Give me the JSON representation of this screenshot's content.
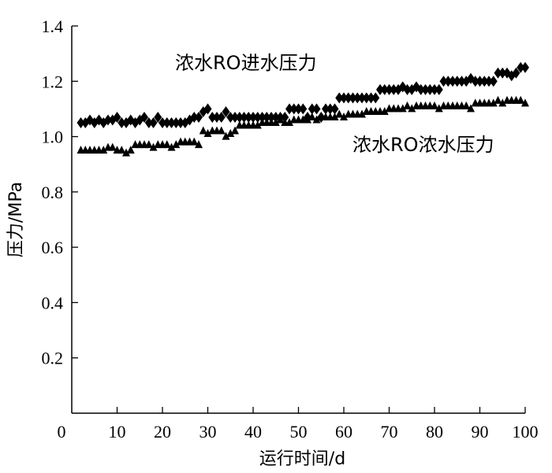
{
  "chart_data": {
    "type": "scatter",
    "title": "",
    "xlabel": "运行时间/d",
    "ylabel": "压力/MPa",
    "xlim": [
      0,
      100
    ],
    "ylim": [
      0,
      1.4
    ],
    "x_ticks": [
      0,
      10,
      20,
      30,
      40,
      50,
      60,
      70,
      80,
      90,
      100
    ],
    "y_ticks": [
      0.2,
      0.4,
      0.6,
      0.8,
      1.0,
      1.2,
      1.4
    ],
    "x_tick_labels": [
      "0",
      "10",
      "20",
      "30",
      "40",
      "50",
      "60",
      "70",
      "80",
      "90",
      "100"
    ],
    "y_tick_labels": [
      "0.2",
      "0.4",
      "0.6",
      "0.8",
      "1.0",
      "1.2",
      "1.4"
    ],
    "grid": false,
    "series": [
      {
        "name": "浓水RO进水压力",
        "marker": "diamond",
        "color": "#000000",
        "x": [
          2,
          3,
          4,
          5,
          6,
          7,
          8,
          9,
          10,
          11,
          12,
          13,
          14,
          15,
          16,
          17,
          18,
          19,
          20,
          21,
          22,
          23,
          24,
          25,
          26,
          27,
          28,
          29,
          30,
          31,
          32,
          33,
          34,
          35,
          36,
          37,
          38,
          39,
          40,
          41,
          42,
          43,
          44,
          45,
          46,
          47,
          48,
          49,
          50,
          51,
          52,
          53,
          54,
          55,
          56,
          57,
          58,
          59,
          60,
          61,
          62,
          63,
          64,
          65,
          66,
          67,
          68,
          69,
          70,
          71,
          72,
          73,
          74,
          75,
          76,
          77,
          78,
          79,
          80,
          81,
          82,
          83,
          84,
          85,
          86,
          87,
          88,
          89,
          90,
          91,
          92,
          93,
          94,
          95,
          96,
          97,
          98,
          99,
          100
        ],
        "y": [
          1.05,
          1.05,
          1.06,
          1.05,
          1.06,
          1.05,
          1.06,
          1.06,
          1.07,
          1.05,
          1.05,
          1.06,
          1.05,
          1.06,
          1.07,
          1.05,
          1.05,
          1.07,
          1.05,
          1.05,
          1.05,
          1.05,
          1.05,
          1.05,
          1.06,
          1.07,
          1.07,
          1.09,
          1.1,
          1.07,
          1.07,
          1.07,
          1.09,
          1.07,
          1.07,
          1.07,
          1.07,
          1.07,
          1.07,
          1.07,
          1.07,
          1.07,
          1.07,
          1.07,
          1.07,
          1.07,
          1.1,
          1.1,
          1.1,
          1.1,
          1.07,
          1.1,
          1.1,
          1.07,
          1.1,
          1.1,
          1.1,
          1.14,
          1.14,
          1.14,
          1.14,
          1.14,
          1.14,
          1.14,
          1.14,
          1.14,
          1.17,
          1.17,
          1.17,
          1.17,
          1.17,
          1.18,
          1.17,
          1.17,
          1.18,
          1.17,
          1.17,
          1.17,
          1.17,
          1.17,
          1.2,
          1.2,
          1.2,
          1.2,
          1.2,
          1.2,
          1.21,
          1.2,
          1.2,
          1.2,
          1.2,
          1.2,
          1.23,
          1.23,
          1.23,
          1.22,
          1.23,
          1.25,
          1.25
        ]
      },
      {
        "name": "浓水RO浓水压力",
        "marker": "triangle",
        "color": "#000000",
        "x": [
          2,
          3,
          4,
          5,
          6,
          7,
          8,
          9,
          10,
          11,
          12,
          13,
          14,
          15,
          16,
          17,
          18,
          19,
          20,
          21,
          22,
          23,
          24,
          25,
          26,
          27,
          28,
          29,
          30,
          31,
          32,
          33,
          34,
          35,
          36,
          37,
          38,
          39,
          40,
          41,
          42,
          43,
          44,
          45,
          46,
          47,
          48,
          49,
          50,
          51,
          52,
          53,
          54,
          55,
          56,
          57,
          58,
          59,
          60,
          61,
          62,
          63,
          64,
          65,
          66,
          67,
          68,
          69,
          70,
          71,
          72,
          73,
          74,
          75,
          76,
          77,
          78,
          79,
          80,
          81,
          82,
          83,
          84,
          85,
          86,
          87,
          88,
          89,
          90,
          91,
          92,
          93,
          94,
          95,
          96,
          97,
          98,
          99,
          100
        ],
        "y": [
          0.95,
          0.95,
          0.95,
          0.95,
          0.95,
          0.95,
          0.96,
          0.96,
          0.95,
          0.95,
          0.94,
          0.95,
          0.97,
          0.97,
          0.97,
          0.97,
          0.96,
          0.97,
          0.97,
          0.97,
          0.96,
          0.97,
          0.98,
          0.98,
          0.98,
          0.98,
          0.97,
          1.02,
          1.01,
          1.02,
          1.02,
          1.02,
          1.0,
          1.01,
          1.02,
          1.04,
          1.04,
          1.04,
          1.04,
          1.04,
          1.05,
          1.05,
          1.05,
          1.05,
          1.06,
          1.05,
          1.05,
          1.06,
          1.06,
          1.06,
          1.06,
          1.07,
          1.06,
          1.07,
          1.07,
          1.07,
          1.07,
          1.08,
          1.07,
          1.08,
          1.08,
          1.08,
          1.08,
          1.09,
          1.09,
          1.09,
          1.09,
          1.09,
          1.1,
          1.1,
          1.1,
          1.1,
          1.11,
          1.1,
          1.11,
          1.11,
          1.11,
          1.11,
          1.11,
          1.1,
          1.11,
          1.11,
          1.11,
          1.11,
          1.11,
          1.11,
          1.1,
          1.12,
          1.12,
          1.12,
          1.12,
          1.12,
          1.13,
          1.12,
          1.13,
          1.13,
          1.13,
          1.13,
          1.12
        ]
      }
    ],
    "annotations": [
      {
        "text": "浓水RO进水压力"
      },
      {
        "text": "浓水RO浓水压力"
      }
    ]
  }
}
